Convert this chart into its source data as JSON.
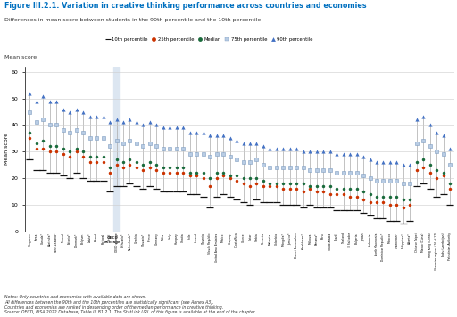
{
  "title": "Figure III.2.1. Variation in creative thinking performance across countries and economies",
  "subtitle": "Differences in mean score between students in the 90th percentile and the 10th percentile",
  "ylabel": "Mean score",
  "ylim": [
    0,
    60
  ],
  "yticks": [
    0,
    10,
    20,
    30,
    40,
    50,
    60
  ],
  "legend_items": [
    "10th percentile",
    "25th percentile",
    "Median",
    "75th percentile",
    "90th percentile"
  ],
  "oecd_avg_index": 13,
  "highlight_color": "#dce6f1",
  "countries": [
    "Singapore",
    "Korea",
    "Canada*",
    "Australia*",
    "New Zealand*",
    "Finland",
    "Estonia*",
    "Denmark*",
    "Belgium",
    "Latvia*",
    "Poland",
    "Portugal",
    "Israel",
    "OECD average",
    "Lithuania*",
    "Netherlands*",
    "Czechia",
    "Slovakia*",
    "France",
    "Germany",
    "Malta",
    "Italy",
    "Hungary",
    "Croatia",
    "Chile",
    "Iceland",
    "Slovenia",
    "Slovak Republic",
    "United Arab Emirates",
    "Mexico",
    "Uruguay",
    "Costa Rica",
    "Greece",
    "Qatar",
    "Serbia",
    "Romania",
    "Malaysia",
    "Colombia",
    "Mongolia*",
    "Jamaica*",
    "Brunei Darussalam",
    "Kazakhstan*",
    "Moldova",
    "Panama*",
    "Peru",
    "Saudi Arabia",
    "Brazil",
    "Thailand",
    "El Salvador",
    "Bulgaria",
    "Jordan",
    "Indonesia",
    "North Macedonia",
    "Dominican Republic*",
    "Morocco",
    "Uzbekistan*",
    "Philippines*",
    "Albania*",
    "Chinese Taipei",
    "Macao (China)",
    "Hong Kong (China)",
    "Ukrainian regions (16 of 27)",
    "Baku (Azerbaijan)",
    "Palestinian Authority"
  ],
  "p10": [
    27,
    23,
    23,
    22,
    22,
    21,
    20,
    22,
    20,
    19,
    19,
    19,
    15,
    17,
    17,
    18,
    17,
    16,
    17,
    16,
    15,
    15,
    15,
    15,
    14,
    14,
    13,
    9,
    13,
    14,
    13,
    12,
    11,
    10,
    12,
    11,
    11,
    11,
    10,
    10,
    10,
    9,
    10,
    9,
    9,
    9,
    8,
    8,
    8,
    8,
    7,
    6,
    5,
    5,
    4,
    4,
    3,
    4,
    17,
    18,
    16,
    13,
    14,
    10
  ],
  "p25": [
    35,
    31,
    31,
    30,
    30,
    29,
    28,
    30,
    28,
    26,
    26,
    26,
    22,
    25,
    24,
    25,
    24,
    23,
    24,
    23,
    22,
    22,
    22,
    22,
    21,
    21,
    20,
    17,
    20,
    21,
    20,
    19,
    18,
    17,
    18,
    17,
    17,
    17,
    16,
    16,
    16,
    15,
    16,
    15,
    15,
    14,
    14,
    14,
    13,
    13,
    12,
    11,
    11,
    11,
    10,
    10,
    9,
    10,
    23,
    24,
    22,
    20,
    21,
    16
  ],
  "median": [
    37,
    33,
    34,
    32,
    32,
    31,
    30,
    31,
    30,
    28,
    28,
    28,
    24,
    27,
    26,
    27,
    26,
    25,
    26,
    25,
    24,
    24,
    24,
    24,
    22,
    22,
    22,
    20,
    22,
    22,
    21,
    21,
    20,
    20,
    20,
    19,
    18,
    18,
    18,
    18,
    18,
    18,
    17,
    17,
    17,
    17,
    16,
    16,
    16,
    16,
    15,
    14,
    13,
    13,
    13,
    13,
    12,
    12,
    26,
    27,
    25,
    23,
    22,
    18
  ],
  "p75": [
    45,
    41,
    42,
    40,
    40,
    38,
    37,
    38,
    37,
    35,
    35,
    35,
    32,
    34,
    33,
    34,
    33,
    32,
    33,
    32,
    31,
    31,
    31,
    31,
    29,
    29,
    29,
    28,
    29,
    29,
    28,
    27,
    26,
    26,
    27,
    25,
    24,
    24,
    24,
    24,
    24,
    24,
    23,
    23,
    23,
    23,
    22,
    22,
    22,
    22,
    21,
    20,
    19,
    19,
    19,
    19,
    18,
    18,
    33,
    34,
    32,
    30,
    29,
    25
  ],
  "p90": [
    52,
    49,
    51,
    49,
    49,
    46,
    45,
    46,
    45,
    43,
    43,
    43,
    41,
    42,
    41,
    42,
    41,
    40,
    41,
    40,
    39,
    39,
    39,
    39,
    37,
    37,
    37,
    36,
    36,
    36,
    35,
    34,
    33,
    33,
    33,
    32,
    31,
    31,
    31,
    31,
    31,
    30,
    30,
    30,
    30,
    30,
    29,
    29,
    29,
    29,
    28,
    27,
    26,
    26,
    26,
    26,
    25,
    25,
    42,
    43,
    40,
    37,
    36,
    31
  ]
}
